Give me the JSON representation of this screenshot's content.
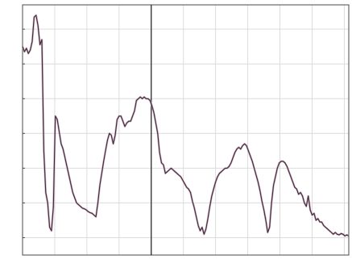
{
  "chart_data": {
    "type": "line",
    "grid": true,
    "x": [
      0,
      0.06,
      0.12,
      0.18,
      0.24,
      0.3,
      0.36,
      0.42,
      0.48,
      0.54,
      0.6,
      0.66,
      0.72,
      0.78,
      0.84,
      0.9,
      0.96,
      1.02,
      1.08,
      1.14,
      1.2,
      1.26,
      1.32,
      1.38,
      1.44,
      1.5,
      1.56,
      1.62,
      1.68,
      1.74,
      1.8,
      1.86,
      1.92,
      1.98,
      2.04,
      2.1,
      2.16,
      2.22,
      2.28,
      2.34,
      2.4,
      2.46,
      2.52,
      2.58,
      2.64,
      2.7,
      2.76,
      2.82,
      2.88,
      2.94,
      3,
      3.06,
      3.12,
      3.18,
      3.24,
      3.3,
      3.36,
      3.42,
      3.48,
      3.54,
      3.6,
      3.66,
      3.72,
      3.78,
      3.84,
      3.9,
      3.96,
      4.02,
      4.08,
      4.14,
      4.2,
      4.26,
      4.32,
      4.38,
      4.44,
      4.5,
      4.56,
      4.62,
      4.68,
      4.74,
      4.8,
      4.86,
      4.92,
      4.98,
      5.04,
      5.1,
      5.16,
      5.22,
      5.28,
      5.34,
      5.4,
      5.46,
      5.52,
      5.58,
      5.64,
      5.7,
      5.76,
      5.82,
      5.88,
      5.94,
      6,
      6.06,
      6.12,
      6.18,
      6.24,
      6.3,
      6.36,
      6.42,
      6.48,
      6.54,
      6.6,
      6.66,
      6.72,
      6.78,
      6.84,
      6.9,
      6.96,
      7.02,
      7.08,
      7.14,
      7.2,
      7.26,
      7.32,
      7.38,
      7.44,
      7.5,
      7.56,
      7.62,
      7.68,
      7.74,
      7.8,
      7.86,
      7.92,
      7.98,
      8.04,
      8.1,
      8.16,
      8.22,
      8.28,
      8.34,
      8.4,
      8.46,
      8.52,
      8.58,
      8.64,
      8.7,
      8.76,
      8.82,
      8.88,
      8.94,
      9,
      9.06,
      9.12,
      9.18,
      9.24,
      9.3,
      9.36,
      9.42,
      9.48,
      9.54,
      9.6,
      9.66,
      9.72,
      9.78,
      9.84,
      9.9,
      9.96,
      10.02,
      10.08,
      10.14
    ],
    "y": [
      5.5,
      5.35,
      5.45,
      5.3,
      5.4,
      5.65,
      6.35,
      6.4,
      6.1,
      5.55,
      5.7,
      2.5,
      1.3,
      1.0,
      0.3,
      0.2,
      0.9,
      3.5,
      3.4,
      3.05,
      2.7,
      2.55,
      2.3,
      2.05,
      1.8,
      1.55,
      1.3,
      1.15,
      1.0,
      0.95,
      0.9,
      0.85,
      0.83,
      0.8,
      0.75,
      0.72,
      0.7,
      0.65,
      0.6,
      1.0,
      1.5,
      1.85,
      2.2,
      2.5,
      2.8,
      3.0,
      2.95,
      2.7,
      2.95,
      3.4,
      3.5,
      3.5,
      3.35,
      3.2,
      3.3,
      3.35,
      3.35,
      3.5,
      3.65,
      3.95,
      4.0,
      4.05,
      4.0,
      4.05,
      4.0,
      4.0,
      3.95,
      3.8,
      3.6,
      3.3,
      3.0,
      2.45,
      2.15,
      2.1,
      1.85,
      1.9,
      1.95,
      2.0,
      1.95,
      1.9,
      1.85,
      1.8,
      1.75,
      1.65,
      1.55,
      1.45,
      1.4,
      1.3,
      1.05,
      0.85,
      0.6,
      0.35,
      0.2,
      0.3,
      0.1,
      0.25,
      0.55,
      0.9,
      1.2,
      1.4,
      1.6,
      1.75,
      1.85,
      1.9,
      1.95,
      2.0,
      2.0,
      2.05,
      2.15,
      2.3,
      2.45,
      2.55,
      2.6,
      2.55,
      2.65,
      2.7,
      2.65,
      2.5,
      2.35,
      2.2,
      2.0,
      1.8,
      1.6,
      1.35,
      1.05,
      0.8,
      0.5,
      0.15,
      0.3,
      1.0,
      1.5,
      1.75,
      2.0,
      2.15,
      2.2,
      2.2,
      2.15,
      2.05,
      1.9,
      1.75,
      1.6,
      1.45,
      1.4,
      1.25,
      1.3,
      1.2,
      1.0,
      0.9,
      1.2,
      0.8,
      0.65,
      0.7,
      0.5,
      0.55,
      0.45,
      0.45,
      0.35,
      0.3,
      0.25,
      0.2,
      0.15,
      0.1,
      0.15,
      0.1,
      0.08,
      0.12,
      0.1,
      0.05,
      0.08,
      0.05
    ],
    "xlim": [
      0,
      10.14
    ],
    "ylim": [
      -0.5,
      6.7
    ],
    "y_tick_values": [
      0,
      1,
      2,
      3,
      4,
      5,
      6
    ],
    "y_tick_labels": [
      "",
      "",
      "",
      "",
      "",
      "",
      ""
    ],
    "x_tick_values": [
      0,
      1,
      2,
      3,
      4,
      5,
      6,
      7,
      8,
      9,
      10
    ],
    "x_tick_labels": [
      "",
      "",
      "",
      "",
      "",
      "",
      "",
      "",
      "",
      "",
      ""
    ],
    "vertical_marker_x": 4.0,
    "colors": {
      "line": "#3a2d36",
      "line_shadow": "#c89bb8",
      "grid": "#dcdcdc",
      "axis": "#4a4a4a",
      "marker": "#1a1a1a"
    }
  }
}
